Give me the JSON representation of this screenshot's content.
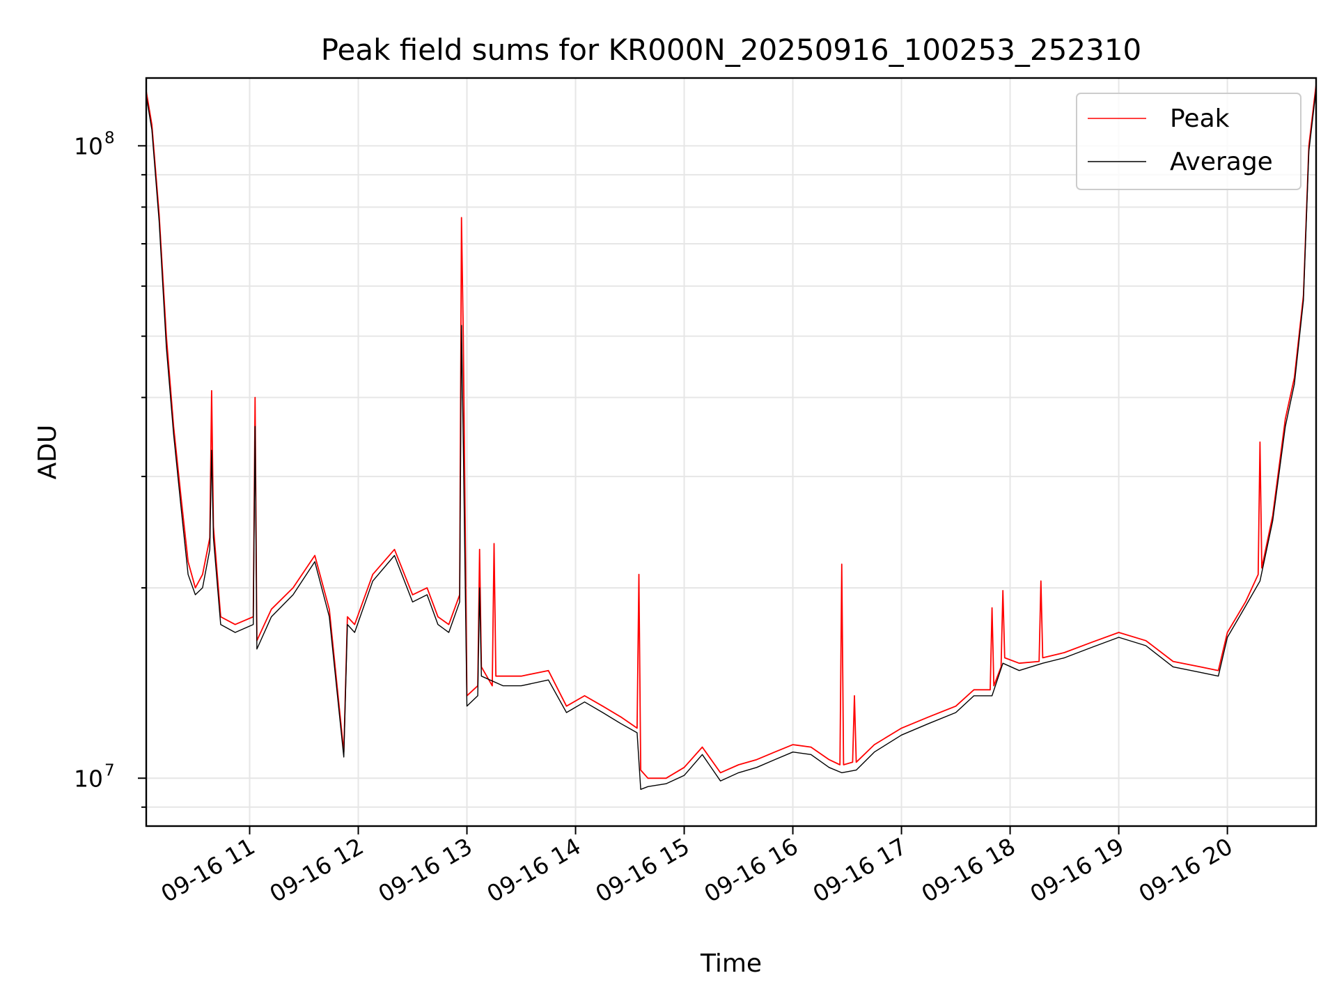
{
  "chart_data": {
    "type": "line",
    "title": "Peak field sums for KR000N_20250916_100253_252310",
    "xlabel": "Time",
    "ylabel": "ADU",
    "yscale": "log",
    "ylim": [
      8400000,
      128000000
    ],
    "xlim": [
      "2025-09-16 10:02:53",
      "2025-09-16 20:49:00"
    ],
    "x_ticks": [
      {
        "t": "2025-09-16 11:00",
        "label": "09-16 11"
      },
      {
        "t": "2025-09-16 12:00",
        "label": "09-16 12"
      },
      {
        "t": "2025-09-16 13:00",
        "label": "09-16 13"
      },
      {
        "t": "2025-09-16 14:00",
        "label": "09-16 14"
      },
      {
        "t": "2025-09-16 15:00",
        "label": "09-16 15"
      },
      {
        "t": "2025-09-16 16:00",
        "label": "09-16 16"
      },
      {
        "t": "2025-09-16 17:00",
        "label": "09-16 17"
      },
      {
        "t": "2025-09-16 18:00",
        "label": "09-16 18"
      },
      {
        "t": "2025-09-16 19:00",
        "label": "09-16 19"
      },
      {
        "t": "2025-09-16 20:00",
        "label": "09-16 20"
      }
    ],
    "y_major_ticks": [
      {
        "value": 10000000,
        "base": "10",
        "exp": "7"
      },
      {
        "value": 100000000,
        "base": "10",
        "exp": "8"
      }
    ],
    "y_minor_ticks": [
      9000000,
      20000000,
      30000000,
      40000000,
      50000000,
      60000000,
      70000000,
      80000000,
      90000000
    ],
    "grid": true,
    "legend_position": "top-right",
    "series": [
      {
        "name": "Peak",
        "color": "#ff0000",
        "x": [
          "2025-09-16 10:02:53",
          "2025-09-16 10:06",
          "2025-09-16 10:10",
          "2025-09-16 10:14",
          "2025-09-16 10:18",
          "2025-09-16 10:22",
          "2025-09-16 10:26",
          "2025-09-16 10:30",
          "2025-09-16 10:34",
          "2025-09-16 10:38",
          "2025-09-16 10:39",
          "2025-09-16 10:40",
          "2025-09-16 10:44",
          "2025-09-16 10:52",
          "2025-09-16 11:02",
          "2025-09-16 11:03",
          "2025-09-16 11:04",
          "2025-09-16 11:12",
          "2025-09-16 11:24",
          "2025-09-16 11:36",
          "2025-09-16 11:44",
          "2025-09-16 11:52",
          "2025-09-16 11:54",
          "2025-09-16 11:58",
          "2025-09-16 12:08",
          "2025-09-16 12:20",
          "2025-09-16 12:30",
          "2025-09-16 12:38",
          "2025-09-16 12:44",
          "2025-09-16 12:50",
          "2025-09-16 12:56",
          "2025-09-16 12:57",
          "2025-09-16 12:58",
          "2025-09-16 13:00",
          "2025-09-16 13:06",
          "2025-09-16 13:07",
          "2025-09-16 13:08",
          "2025-09-16 13:14",
          "2025-09-16 13:15",
          "2025-09-16 13:16",
          "2025-09-16 13:20",
          "2025-09-16 13:30",
          "2025-09-16 13:45",
          "2025-09-16 13:55",
          "2025-09-16 14:05",
          "2025-09-16 14:15",
          "2025-09-16 14:25",
          "2025-09-16 14:34",
          "2025-09-16 14:35",
          "2025-09-16 14:36",
          "2025-09-16 14:40",
          "2025-09-16 14:50",
          "2025-09-16 15:00",
          "2025-09-16 15:10",
          "2025-09-16 15:20",
          "2025-09-16 15:30",
          "2025-09-16 15:40",
          "2025-09-16 15:50",
          "2025-09-16 16:00",
          "2025-09-16 16:10",
          "2025-09-16 16:20",
          "2025-09-16 16:26",
          "2025-09-16 16:27",
          "2025-09-16 16:28",
          "2025-09-16 16:33",
          "2025-09-16 16:34",
          "2025-09-16 16:35",
          "2025-09-16 16:45",
          "2025-09-16 17:00",
          "2025-09-16 17:15",
          "2025-09-16 17:30",
          "2025-09-16 17:40",
          "2025-09-16 17:49",
          "2025-09-16 17:50",
          "2025-09-16 17:51",
          "2025-09-16 17:55",
          "2025-09-16 17:56",
          "2025-09-16 17:57",
          "2025-09-16 18:05",
          "2025-09-16 18:16",
          "2025-09-16 18:17",
          "2025-09-16 18:18",
          "2025-09-16 18:30",
          "2025-09-16 18:45",
          "2025-09-16 19:00",
          "2025-09-16 19:15",
          "2025-09-16 19:30",
          "2025-09-16 19:45",
          "2025-09-16 19:55",
          "2025-09-16 20:00",
          "2025-09-16 20:10",
          "2025-09-16 20:17",
          "2025-09-16 20:18",
          "2025-09-16 20:19",
          "2025-09-16 20:25",
          "2025-09-16 20:32",
          "2025-09-16 20:37",
          "2025-09-16 20:42",
          "2025-09-16 20:45",
          "2025-09-16 20:49"
        ],
        "y": [
          122000000,
          108000000,
          78000000,
          50000000,
          36000000,
          28000000,
          22000000,
          20000000,
          21000000,
          24000000,
          41000000,
          25000000,
          18000000,
          17500000,
          18000000,
          40000000,
          16500000,
          18500000,
          20000000,
          22500000,
          18500000,
          11000000,
          18000000,
          17500000,
          21000000,
          23000000,
          19500000,
          20000000,
          18000000,
          17500000,
          19500000,
          77000000,
          50000000,
          13500000,
          14000000,
          23000000,
          15000000,
          14000000,
          23500000,
          14500000,
          14500000,
          14500000,
          14800000,
          13000000,
          13500000,
          13000000,
          12500000,
          12000000,
          21000000,
          10300000,
          10000000,
          10000000,
          10400000,
          11200000,
          10200000,
          10500000,
          10700000,
          11000000,
          11300000,
          11200000,
          10700000,
          10500000,
          21800000,
          10500000,
          10600000,
          13500000,
          10600000,
          11300000,
          12000000,
          12500000,
          13000000,
          13800000,
          13800000,
          18600000,
          14000000,
          15000000,
          19800000,
          15500000,
          15200000,
          15300000,
          20500000,
          15500000,
          15800000,
          16400000,
          17000000,
          16500000,
          15300000,
          15000000,
          14800000,
          17000000,
          19000000,
          21000000,
          34000000,
          21500000,
          26000000,
          37000000,
          43000000,
          58000000,
          100000000,
          125000000
        ]
      },
      {
        "name": "Average",
        "color": "#000000",
        "x": [
          "2025-09-16 10:02:53",
          "2025-09-16 10:06",
          "2025-09-16 10:10",
          "2025-09-16 10:14",
          "2025-09-16 10:18",
          "2025-09-16 10:22",
          "2025-09-16 10:26",
          "2025-09-16 10:30",
          "2025-09-16 10:34",
          "2025-09-16 10:38",
          "2025-09-16 10:39",
          "2025-09-16 10:40",
          "2025-09-16 10:44",
          "2025-09-16 10:52",
          "2025-09-16 11:02",
          "2025-09-16 11:03",
          "2025-09-16 11:04",
          "2025-09-16 11:12",
          "2025-09-16 11:24",
          "2025-09-16 11:36",
          "2025-09-16 11:44",
          "2025-09-16 11:52",
          "2025-09-16 11:54",
          "2025-09-16 11:58",
          "2025-09-16 12:08",
          "2025-09-16 12:20",
          "2025-09-16 12:30",
          "2025-09-16 12:38",
          "2025-09-16 12:44",
          "2025-09-16 12:50",
          "2025-09-16 12:56",
          "2025-09-16 12:57",
          "2025-09-16 12:58",
          "2025-09-16 13:00",
          "2025-09-16 13:06",
          "2025-09-16 13:07",
          "2025-09-16 13:08",
          "2025-09-16 13:20",
          "2025-09-16 13:30",
          "2025-09-16 13:45",
          "2025-09-16 13:55",
          "2025-09-16 14:05",
          "2025-09-16 14:15",
          "2025-09-16 14:25",
          "2025-09-16 14:34",
          "2025-09-16 14:36",
          "2025-09-16 14:40",
          "2025-09-16 14:50",
          "2025-09-16 15:00",
          "2025-09-16 15:10",
          "2025-09-16 15:20",
          "2025-09-16 15:30",
          "2025-09-16 15:40",
          "2025-09-16 15:50",
          "2025-09-16 16:00",
          "2025-09-16 16:10",
          "2025-09-16 16:20",
          "2025-09-16 16:27",
          "2025-09-16 16:35",
          "2025-09-16 16:45",
          "2025-09-16 17:00",
          "2025-09-16 17:15",
          "2025-09-16 17:30",
          "2025-09-16 17:40",
          "2025-09-16 17:50",
          "2025-09-16 17:56",
          "2025-09-16 18:05",
          "2025-09-16 18:18",
          "2025-09-16 18:30",
          "2025-09-16 18:45",
          "2025-09-16 19:00",
          "2025-09-16 19:15",
          "2025-09-16 19:30",
          "2025-09-16 19:45",
          "2025-09-16 19:55",
          "2025-09-16 20:00",
          "2025-09-16 20:10",
          "2025-09-16 20:18",
          "2025-09-16 20:25",
          "2025-09-16 20:32",
          "2025-09-16 20:37",
          "2025-09-16 20:42",
          "2025-09-16 20:45",
          "2025-09-16 20:49"
        ],
        "y": [
          120000000,
          106000000,
          76000000,
          48000000,
          35000000,
          27000000,
          21000000,
          19500000,
          20000000,
          23000000,
          33000000,
          24000000,
          17500000,
          17000000,
          17500000,
          36000000,
          16000000,
          18000000,
          19500000,
          22000000,
          18000000,
          10800000,
          17500000,
          17000000,
          20500000,
          22500000,
          19000000,
          19500000,
          17500000,
          17000000,
          19000000,
          52000000,
          34000000,
          13000000,
          13500000,
          20000000,
          14500000,
          14000000,
          14000000,
          14300000,
          12700000,
          13200000,
          12700000,
          12200000,
          11800000,
          9600000,
          9700000,
          9800000,
          10100000,
          10900000,
          9900000,
          10200000,
          10400000,
          10700000,
          11000000,
          10900000,
          10400000,
          10200000,
          10300000,
          11000000,
          11700000,
          12200000,
          12700000,
          13500000,
          13500000,
          15200000,
          14800000,
          15200000,
          15500000,
          16100000,
          16700000,
          16200000,
          15000000,
          14700000,
          14500000,
          16700000,
          18700000,
          20500000,
          25500000,
          36000000,
          42000000,
          57000000,
          98000000,
          123000000
        ]
      }
    ]
  }
}
